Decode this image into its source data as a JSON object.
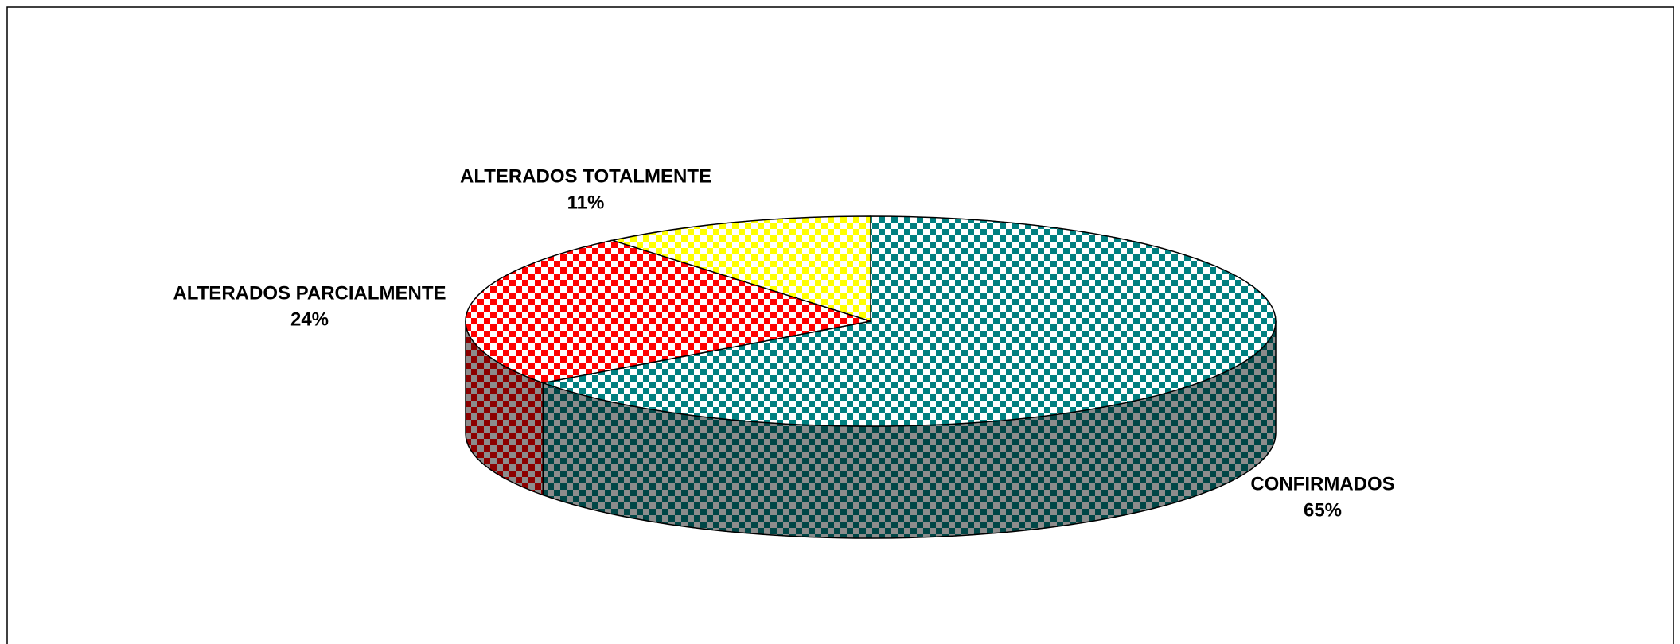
{
  "chart_data": {
    "type": "pie",
    "categories": [
      "CONFIRMADOS",
      "ALTERADOS PARCIALMENTE",
      "ALTERADOS TOTALMENTE"
    ],
    "values": [
      65,
      24,
      11
    ],
    "value_labels": [
      "65%",
      "24%",
      "11%"
    ],
    "colors": [
      "#008080",
      "#ff0000",
      "#ffff00"
    ]
  }
}
